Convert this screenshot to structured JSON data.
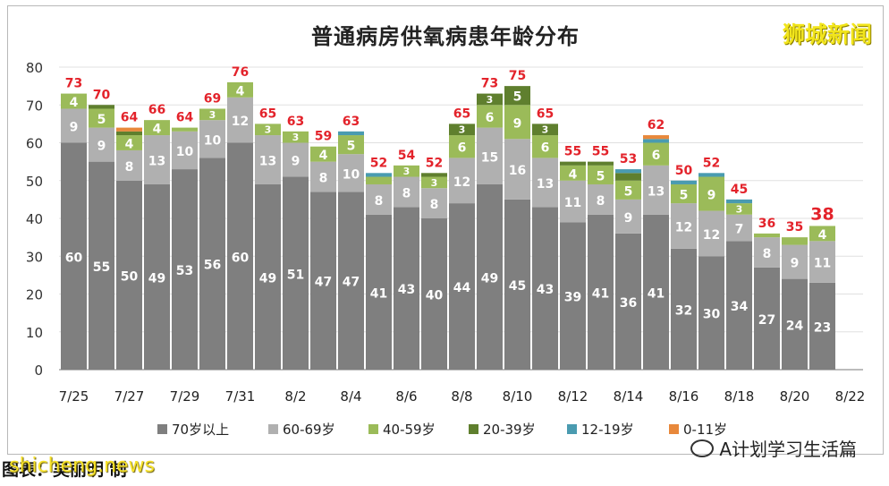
{
  "chart_data": {
    "type": "bar",
    "stacked": true,
    "title": "普通病房供氧病患年龄分布",
    "xlabel": "",
    "ylabel": "",
    "ylim": [
      0,
      80
    ],
    "yticks": [
      0,
      10,
      20,
      30,
      40,
      50,
      60,
      70,
      80
    ],
    "grid": "horizontal",
    "legend_position": "bottom",
    "x_tick_labels": [
      "7/25",
      "7/27",
      "7/29",
      "7/31",
      "8/2",
      "8/4",
      "8/6",
      "8/8",
      "8/10",
      "8/12",
      "8/14",
      "8/16",
      "8/18",
      "8/20",
      "8/22"
    ],
    "categories": [
      "7/25",
      "7/26",
      "7/27",
      "7/28",
      "7/29",
      "7/30",
      "7/31",
      "8/1",
      "8/2",
      "8/3",
      "8/4",
      "8/5",
      "8/6",
      "8/7",
      "8/8",
      "8/9",
      "8/10",
      "8/11",
      "8/12",
      "8/13",
      "8/14",
      "8/15",
      "8/16",
      "8/17",
      "8/18",
      "8/19",
      "8/20",
      "8/21"
    ],
    "series": [
      {
        "name": "70岁以上",
        "color": "#7f7f7f",
        "values": [
          60,
          55,
          50,
          49,
          53,
          56,
          60,
          49,
          51,
          47,
          47,
          41,
          43,
          40,
          44,
          49,
          45,
          43,
          39,
          41,
          36,
          41,
          32,
          30,
          34,
          27,
          24,
          23
        ]
      },
      {
        "name": "60-69岁",
        "color": "#b0b0b0",
        "values": [
          9,
          9,
          8,
          13,
          10,
          10,
          12,
          13,
          9,
          8,
          10,
          8,
          8,
          8,
          12,
          15,
          16,
          13,
          11,
          8,
          9,
          13,
          12,
          12,
          7,
          8,
          9,
          11
        ]
      },
      {
        "name": "40-59岁",
        "color": "#9bbb59",
        "values": [
          4,
          5,
          4,
          4,
          1,
          3,
          4,
          3,
          3,
          4,
          5,
          2,
          3,
          3,
          6,
          6,
          9,
          6,
          4,
          5,
          5,
          6,
          5,
          9,
          3,
          1,
          2,
          4
        ]
      },
      {
        "name": "20-39岁",
        "color": "#5f7f2e",
        "values": [
          0,
          1,
          1,
          0,
          0,
          0,
          0,
          0,
          0,
          0,
          0,
          0,
          0,
          1,
          3,
          3,
          5,
          3,
          1,
          1,
          2,
          0,
          0,
          0,
          0,
          0,
          0,
          0
        ]
      },
      {
        "name": "12-19岁",
        "color": "#4a9bb0",
        "values": [
          0,
          0,
          0,
          0,
          0,
          0,
          0,
          0,
          0,
          0,
          1,
          1,
          0,
          0,
          0,
          0,
          0,
          0,
          0,
          0,
          1,
          1,
          1,
          1,
          1,
          0,
          0,
          0
        ]
      },
      {
        "name": "0-11岁",
        "color": "#e8883b",
        "values": [
          0,
          0,
          1,
          0,
          0,
          0,
          0,
          0,
          0,
          0,
          0,
          0,
          0,
          0,
          0,
          0,
          0,
          0,
          0,
          0,
          0,
          1,
          0,
          0,
          0,
          0,
          0,
          0
        ]
      }
    ],
    "totals": [
      73,
      70,
      64,
      66,
      64,
      69,
      76,
      65,
      63,
      59,
      63,
      52,
      54,
      52,
      65,
      73,
      75,
      65,
      55,
      55,
      53,
      62,
      50,
      52,
      45,
      36,
      35,
      38
    ],
    "label_colors": {
      "total": "#e3232b",
      "inner": "#ffffff",
      "inner_light": "#333333"
    }
  },
  "header": {
    "brand": "狮城新闻"
  },
  "footer": {
    "credit": "图表：吴丽明 制",
    "watermark_left": "shicheng.news",
    "watermark_right": "A计划学习生活篇"
  }
}
